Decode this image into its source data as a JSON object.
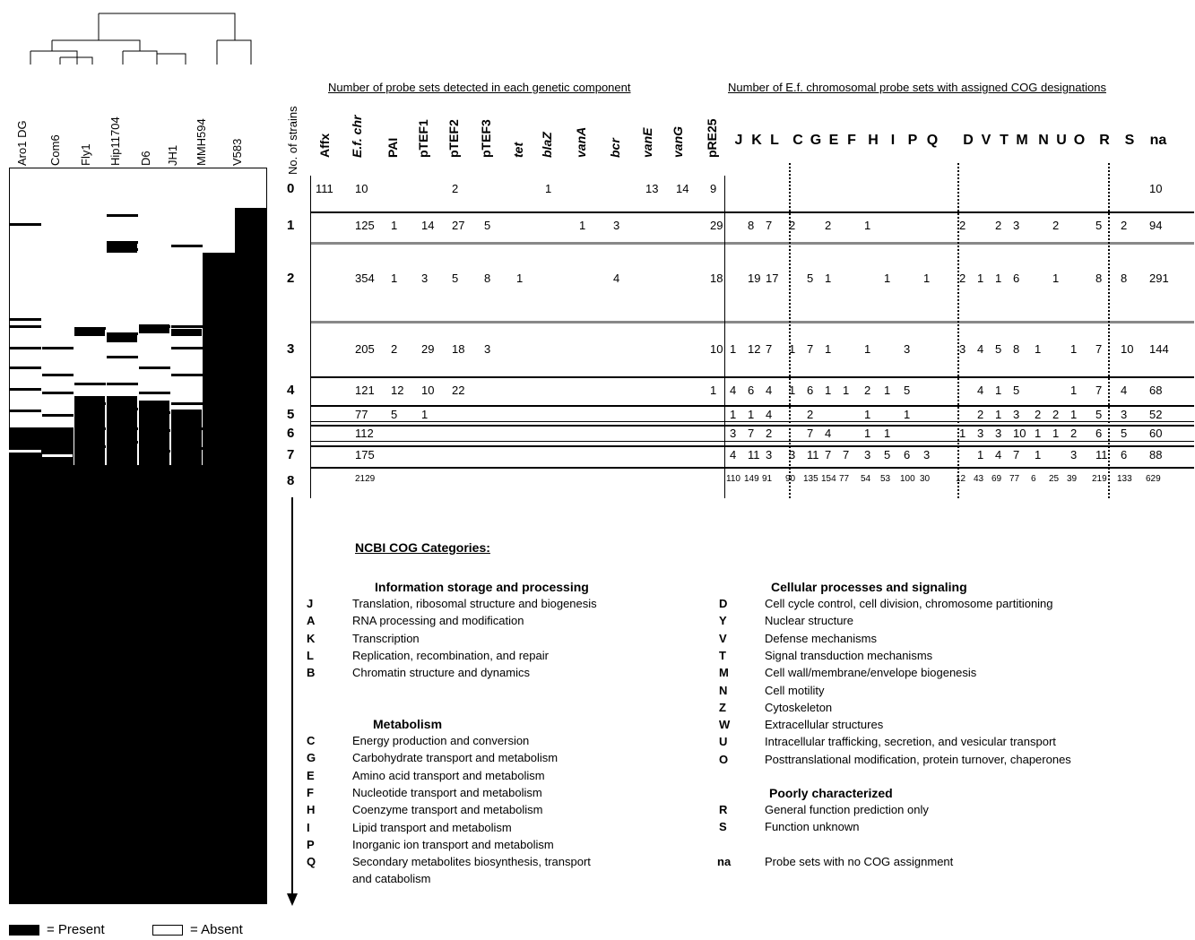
{
  "dendrogram_leaves": [
    "Aro1 DG",
    "Com6",
    "Fly1",
    "Hip11704",
    "D6",
    "JH1",
    "MMH594",
    "V583"
  ],
  "y_axis_label": "No. of strains",
  "section_titles": {
    "components": "Number of probe sets detected in each genetic component",
    "cog": "Number of E.f. chromosomal probe sets with assigned COG designations"
  },
  "component_columns": [
    "Affx",
    "E.f. chr",
    "PAI",
    "pTEF1",
    "pTEF2",
    "pTEF3",
    "tet",
    "blaZ",
    "vanA",
    "bcr",
    "vanE",
    "vanG",
    "pRE25"
  ],
  "cog_columns": [
    "J",
    "K",
    "L",
    "C",
    "G",
    "E",
    "F",
    "H",
    "I",
    "P",
    "Q",
    "D",
    "V",
    "T",
    "M",
    "N",
    "U",
    "O",
    "R",
    "S",
    "na"
  ],
  "rows": [
    {
      "label": "0",
      "components": [
        "111",
        "10",
        "",
        "",
        "2",
        "",
        "",
        "1",
        "",
        "",
        "13",
        "14",
        "9"
      ],
      "cog": [
        "",
        "",
        "",
        "",
        "",
        "",
        "",
        "",
        "",
        "",
        "",
        "",
        "",
        "",
        "",
        "",
        "",
        "",
        "",
        "",
        "10"
      ]
    },
    {
      "label": "1",
      "components": [
        "",
        "125",
        "1",
        "14",
        "27",
        "5",
        "",
        "",
        "1",
        "3",
        "",
        "",
        "29"
      ],
      "cog": [
        "",
        "8",
        "7",
        "2",
        "",
        "2",
        "",
        "1",
        "",
        "",
        "",
        "2",
        "",
        "2",
        "3",
        "",
        "2",
        "",
        "5",
        "2",
        "94"
      ]
    },
    {
      "label": "2",
      "components": [
        "",
        "354",
        "1",
        "3",
        "5",
        "8",
        "1",
        "",
        "",
        "4",
        "",
        "",
        "18"
      ],
      "cog": [
        "",
        "19",
        "17",
        "",
        "5",
        "1",
        "",
        "",
        "1",
        "",
        "1",
        "2",
        "1",
        "1",
        "6",
        "",
        "1",
        "",
        "8",
        "8",
        "291"
      ]
    },
    {
      "label": "3",
      "components": [
        "",
        "205",
        "2",
        "29",
        "18",
        "3",
        "",
        "",
        "",
        "",
        "",
        "",
        "10"
      ],
      "cog": [
        "1",
        "12",
        "7",
        "1",
        "7",
        "1",
        "",
        "1",
        "",
        "3",
        "",
        "3",
        "4",
        "5",
        "8",
        "1",
        "",
        "1",
        "7",
        "10",
        "144"
      ]
    },
    {
      "label": "4",
      "components": [
        "",
        "121",
        "12",
        "10",
        "22",
        "",
        "",
        "",
        "",
        "",
        "",
        "",
        "1"
      ],
      "cog": [
        "4",
        "6",
        "4",
        "1",
        "6",
        "1",
        "1",
        "2",
        "1",
        "5",
        "",
        "",
        "4",
        "1",
        "5",
        "",
        "",
        "1",
        "7",
        "4",
        "68"
      ]
    },
    {
      "label": "5",
      "components": [
        "",
        "77",
        "5",
        "1",
        "",
        "",
        "",
        "",
        "",
        "",
        "",
        "",
        ""
      ],
      "cog": [
        "1",
        "1",
        "4",
        "",
        "2",
        "",
        "",
        "1",
        "",
        "1",
        "",
        "",
        "2",
        "1",
        "3",
        "2",
        "2",
        "1",
        "5",
        "3",
        "52"
      ]
    },
    {
      "label": "6",
      "components": [
        "",
        "112",
        "",
        "",
        "",
        "",
        "",
        "",
        "",
        "",
        "",
        "",
        ""
      ],
      "cog": [
        "3",
        "7",
        "2",
        "",
        "7",
        "4",
        "",
        "1",
        "1",
        "",
        "",
        "1",
        "3",
        "3",
        "10",
        "1",
        "1",
        "2",
        "6",
        "5",
        "60"
      ]
    },
    {
      "label": "7",
      "components": [
        "",
        "175",
        "",
        "",
        "",
        "",
        "",
        "",
        "",
        "",
        "",
        "",
        ""
      ],
      "cog": [
        "4",
        "11",
        "3",
        "3",
        "11",
        "7",
        "7",
        "3",
        "5",
        "6",
        "3",
        "",
        "1",
        "4",
        "7",
        "1",
        "",
        "3",
        "11",
        "6",
        "88"
      ]
    },
    {
      "label": "8",
      "components": [
        "",
        "2129",
        "",
        "",
        "",
        "",
        "",
        "",
        "",
        "",
        "",
        "",
        ""
      ],
      "cog": [
        "110",
        "149",
        "91",
        "90",
        "135",
        "154",
        "77",
        "54",
        "53",
        "100",
        "30",
        "12",
        "43",
        "69",
        "77",
        "6",
        "25",
        "39",
        "219",
        "133",
        "629"
      ]
    }
  ],
  "legend_title": "NCBI COG Categories:",
  "legend_groups": [
    {
      "title": "Information storage and processing",
      "items": [
        {
          "k": "J",
          "d": "Translation, ribosomal structure and biogenesis"
        },
        {
          "k": "A",
          "d": "RNA processing and modification"
        },
        {
          "k": "K",
          "d": "Transcription"
        },
        {
          "k": "L",
          "d": "Replication, recombination, and repair"
        },
        {
          "k": "B",
          "d": "Chromatin structure and dynamics"
        }
      ]
    },
    {
      "title": "Metabolism",
      "items": [
        {
          "k": "C",
          "d": "Energy production and conversion"
        },
        {
          "k": "G",
          "d": "Carbohydrate transport and metabolism"
        },
        {
          "k": "E",
          "d": "Amino acid transport and metabolism"
        },
        {
          "k": "F",
          "d": "Nucleotide transport and metabolism"
        },
        {
          "k": "H",
          "d": "Coenzyme transport and metabolism"
        },
        {
          "k": "I",
          "d": "Lipid transport and metabolism"
        },
        {
          "k": "P",
          "d": "Inorganic ion transport and metabolism"
        },
        {
          "k": "Q",
          "d": "Secondary metabolites biosynthesis, transport"
        },
        {
          "k": "",
          "d": "and catabolism"
        }
      ]
    },
    {
      "title": "Cellular processes and signaling",
      "items": [
        {
          "k": "D",
          "d": "Cell cycle control, cell division, chromosome partitioning"
        },
        {
          "k": "Y",
          "d": "Nuclear structure"
        },
        {
          "k": "V",
          "d": "Defense mechanisms"
        },
        {
          "k": "T",
          "d": "Signal transduction mechanisms"
        },
        {
          "k": "M",
          "d": "Cell wall/membrane/envelope biogenesis"
        },
        {
          "k": "N",
          "d": "Cell motility"
        },
        {
          "k": "Z",
          "d": "Cytoskeleton"
        },
        {
          "k": "W",
          "d": "Extracellular structures"
        },
        {
          "k": "U",
          "d": "Intracellular trafficking, secretion, and vesicular transport"
        },
        {
          "k": "O",
          "d": "Posttranslational modification, protein turnover, chaperones"
        }
      ]
    },
    {
      "title": "Poorly characterized",
      "items": [
        {
          "k": "R",
          "d": "General function prediction only"
        },
        {
          "k": "S",
          "d": "Function unknown"
        },
        {
          "k": "",
          "d": ""
        },
        {
          "k": "na",
          "d": "Probe sets with no COG assignment"
        }
      ]
    }
  ],
  "key": {
    "present": "= Present",
    "absent": "= Absent"
  }
}
